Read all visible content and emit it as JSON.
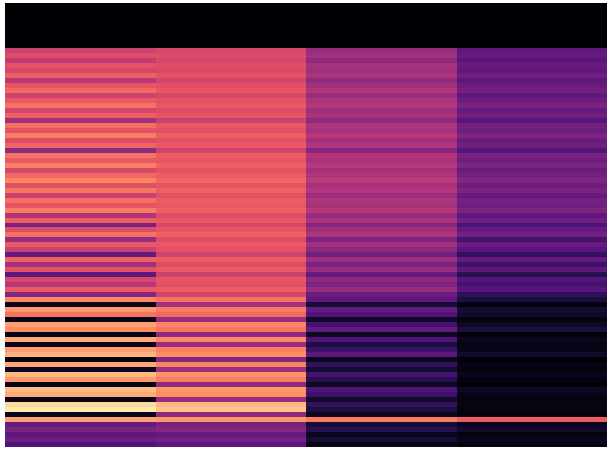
{
  "chart_data": {
    "type": "heatmap",
    "tick_labels": false,
    "zlim": [
      0,
      1
    ],
    "cells": [
      [
        0,
        0,
        0,
        0
      ],
      [
        0,
        0,
        0,
        0
      ],
      [
        0,
        0,
        0,
        0
      ],
      [
        0,
        0,
        0,
        0
      ],
      [
        0,
        0,
        0,
        0
      ],
      [
        0,
        0,
        0,
        0
      ],
      [
        0,
        0,
        0,
        0
      ],
      [
        0,
        0,
        0,
        0
      ],
      [
        0,
        0,
        0,
        0
      ],
      [
        0.55,
        0.58,
        0.42,
        0.28
      ],
      [
        0.6,
        0.6,
        0.45,
        0.3
      ],
      [
        0.52,
        0.58,
        0.4,
        0.27
      ],
      [
        0.62,
        0.6,
        0.46,
        0.31
      ],
      [
        0.58,
        0.59,
        0.44,
        0.29
      ],
      [
        0.66,
        0.62,
        0.47,
        0.33
      ],
      [
        0.5,
        0.57,
        0.41,
        0.28
      ],
      [
        0.63,
        0.61,
        0.45,
        0.31
      ],
      [
        0.68,
        0.63,
        0.48,
        0.34
      ],
      [
        0.56,
        0.58,
        0.43,
        0.29
      ],
      [
        0.64,
        0.62,
        0.47,
        0.32
      ],
      [
        0.7,
        0.64,
        0.49,
        0.35
      ],
      [
        0.57,
        0.6,
        0.44,
        0.3
      ],
      [
        0.66,
        0.63,
        0.47,
        0.33
      ],
      [
        0.45,
        0.55,
        0.4,
        0.27
      ],
      [
        0.69,
        0.64,
        0.48,
        0.34
      ],
      [
        0.62,
        0.61,
        0.46,
        0.32
      ],
      [
        0.72,
        0.65,
        0.5,
        0.36
      ],
      [
        0.6,
        0.62,
        0.45,
        0.31
      ],
      [
        0.67,
        0.64,
        0.48,
        0.33
      ],
      [
        0.4,
        0.56,
        0.38,
        0.26
      ],
      [
        0.7,
        0.65,
        0.49,
        0.35
      ],
      [
        0.64,
        0.63,
        0.47,
        0.32
      ],
      [
        0.73,
        0.66,
        0.5,
        0.36
      ],
      [
        0.58,
        0.62,
        0.45,
        0.31
      ],
      [
        0.68,
        0.65,
        0.48,
        0.34
      ],
      [
        0.74,
        0.67,
        0.51,
        0.37
      ],
      [
        0.61,
        0.63,
        0.46,
        0.32
      ],
      [
        0.71,
        0.66,
        0.49,
        0.35
      ],
      [
        0.55,
        0.62,
        0.43,
        0.3
      ],
      [
        0.69,
        0.65,
        0.48,
        0.34
      ],
      [
        0.63,
        0.64,
        0.46,
        0.33
      ],
      [
        0.72,
        0.66,
        0.5,
        0.36
      ],
      [
        0.48,
        0.6,
        0.42,
        0.29
      ],
      [
        0.66,
        0.64,
        0.47,
        0.33
      ],
      [
        0.35,
        0.58,
        0.38,
        0.24
      ],
      [
        0.6,
        0.63,
        0.44,
        0.3
      ],
      [
        0.7,
        0.66,
        0.48,
        0.34
      ],
      [
        0.42,
        0.6,
        0.36,
        0.22
      ],
      [
        0.64,
        0.64,
        0.45,
        0.31
      ],
      [
        0.55,
        0.62,
        0.4,
        0.27
      ],
      [
        0.3,
        0.56,
        0.33,
        0.18
      ],
      [
        0.66,
        0.65,
        0.44,
        0.3
      ],
      [
        0.45,
        0.6,
        0.35,
        0.2
      ],
      [
        0.62,
        0.64,
        0.42,
        0.28
      ],
      [
        0.28,
        0.55,
        0.3,
        0.15
      ],
      [
        0.58,
        0.63,
        0.4,
        0.26
      ],
      [
        0.5,
        0.61,
        0.36,
        0.22
      ],
      [
        0.64,
        0.65,
        0.42,
        0.27
      ],
      [
        0.38,
        0.57,
        0.32,
        0.17
      ],
      [
        0.75,
        0.7,
        0.28,
        0.12
      ],
      [
        0.05,
        0.45,
        0.1,
        0.02
      ],
      [
        0.78,
        0.72,
        0.3,
        0.1
      ],
      [
        0.7,
        0.68,
        0.25,
        0.08
      ],
      [
        0.04,
        0.42,
        0.08,
        0.02
      ],
      [
        0.8,
        0.74,
        0.22,
        0.06
      ],
      [
        0.76,
        0.71,
        0.3,
        0.12
      ],
      [
        0.03,
        0.4,
        0.06,
        0.01
      ],
      [
        0.82,
        0.75,
        0.25,
        0.05
      ],
      [
        0.05,
        0.43,
        0.12,
        0.03
      ],
      [
        0.79,
        0.73,
        0.2,
        0.04
      ],
      [
        0.84,
        0.76,
        0.28,
        0.08
      ],
      [
        0.02,
        0.38,
        0.05,
        0.01
      ],
      [
        0.81,
        0.74,
        0.18,
        0.03
      ],
      [
        0.06,
        0.44,
        0.1,
        0.02
      ],
      [
        0.85,
        0.77,
        0.22,
        0.05
      ],
      [
        0.78,
        0.72,
        0.15,
        0.02
      ],
      [
        0.03,
        0.4,
        0.06,
        0.01
      ],
      [
        0.86,
        0.78,
        0.25,
        0.06
      ],
      [
        0.82,
        0.76,
        0.2,
        0.04
      ],
      [
        0.04,
        0.42,
        0.08,
        0.02
      ],
      [
        0.92,
        0.85,
        0.18,
        0.03
      ],
      [
        0.96,
        0.88,
        0.12,
        0.02
      ],
      [
        0.05,
        0.4,
        0.05,
        0.01
      ],
      [
        0.8,
        0.78,
        0.72,
        0.65
      ],
      [
        0.3,
        0.35,
        0.1,
        0.05
      ],
      [
        0.35,
        0.38,
        0.15,
        0.08
      ],
      [
        0.28,
        0.3,
        0.05,
        0.02
      ],
      [
        0.32,
        0.34,
        0.1,
        0.05
      ],
      [
        0.25,
        0.28,
        0.04,
        0.02
      ]
    ]
  }
}
